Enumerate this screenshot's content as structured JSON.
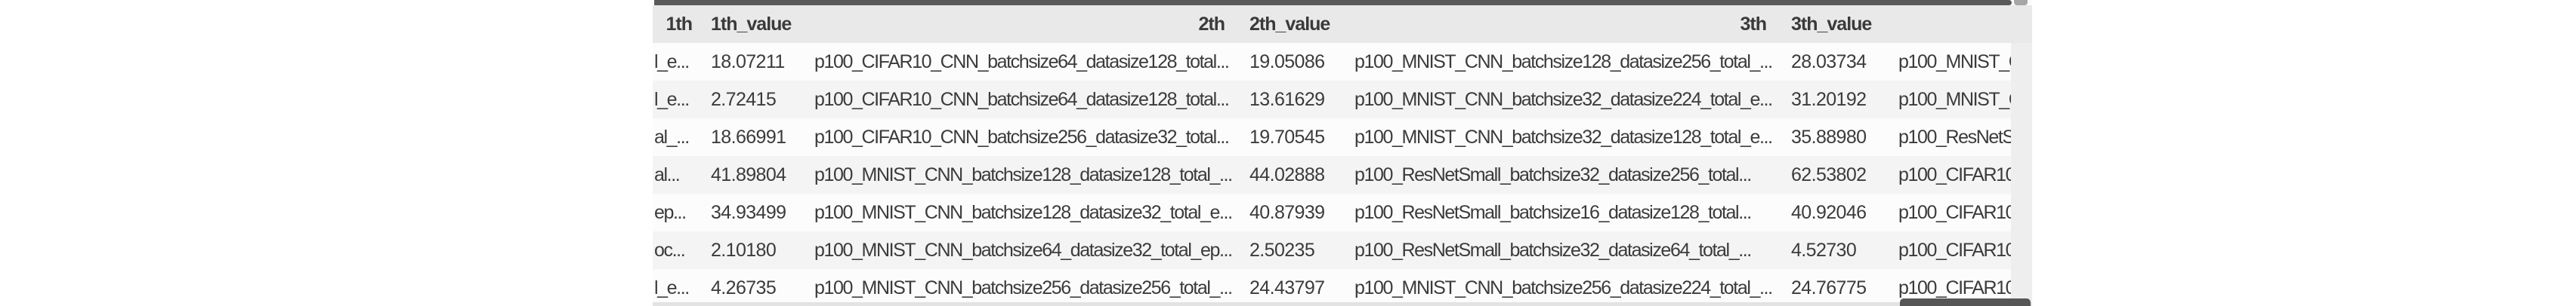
{
  "table": {
    "headers": {
      "col1": "1th",
      "col1_value": "1th_value",
      "col2": "2th",
      "col2_value": "2th_value",
      "col3": "3th",
      "col3_value": "3th_value"
    },
    "rows": [
      {
        "c1": "l_e...",
        "v1": "18.07211",
        "c2": "p100_CIFAR10_CNN_batchsize64_datasize128_total...",
        "v2": "19.05086",
        "c3": "p100_MNIST_CNN_batchsize128_datasize256_total_...",
        "v3": "28.03734",
        "c4": "p100_MNIST_C"
      },
      {
        "c1": "l_e...",
        "v1": "2.72415",
        "c2": "p100_CIFAR10_CNN_batchsize64_datasize128_total...",
        "v2": "13.61629",
        "c3": "p100_MNIST_CNN_batchsize32_datasize224_total_e...",
        "v3": "31.20192",
        "c4": "p100_MNIST_C"
      },
      {
        "c1": "al_...",
        "v1": "18.66991",
        "c2": "p100_CIFAR10_CNN_batchsize256_datasize32_total...",
        "v2": "19.70545",
        "c3": "p100_MNIST_CNN_batchsize32_datasize128_total_e...",
        "v3": "35.88980",
        "c4": "p100_ResNetS"
      },
      {
        "c1": "al...",
        "v1": "41.89804",
        "c2": "p100_MNIST_CNN_batchsize128_datasize128_total_...",
        "v2": "44.02888",
        "c3": "p100_ResNetSmall_batchsize32_datasize256_total...",
        "v3": "62.53802",
        "c4": "p100_CIFAR10_"
      },
      {
        "c1": "ep...",
        "v1": "34.93499",
        "c2": "p100_MNIST_CNN_batchsize128_datasize32_total_e...",
        "v2": "40.87939",
        "c3": "p100_ResNetSmall_batchsize16_datasize128_total...",
        "v3": "40.92046",
        "c4": "p100_CIFAR10_"
      },
      {
        "c1": "oc...",
        "v1": "2.10180",
        "c2": "p100_MNIST_CNN_batchsize64_datasize32_total_ep...",
        "v2": "2.50235",
        "c3": "p100_ResNetSmall_batchsize32_datasize64_total_...",
        "v3": "4.52730",
        "c4": "p100_CIFAR10_"
      },
      {
        "c1": "l_e...",
        "v1": "4.26735",
        "c2": "p100_MNIST_CNN_batchsize256_datasize256_total_...",
        "v2": "24.43797",
        "c3": "p100_MNIST_CNN_batchsize256_datasize224_total_...",
        "v3": "24.76775",
        "c4": "p100_CIFAR10_"
      }
    ]
  },
  "colors": {
    "header_bg": "#e9e9e9",
    "row_bg": "#fcfcfc",
    "row_alt_bg": "#f4f4f4",
    "text": "#3b3b3b",
    "scrollbar_thumb_dark": "#5a5a5a",
    "scrollbar_thumb_light": "#a6a6a6",
    "scrollbar_track": "#e3e3e3",
    "scrollbar_gutter": "#eeeeee"
  }
}
